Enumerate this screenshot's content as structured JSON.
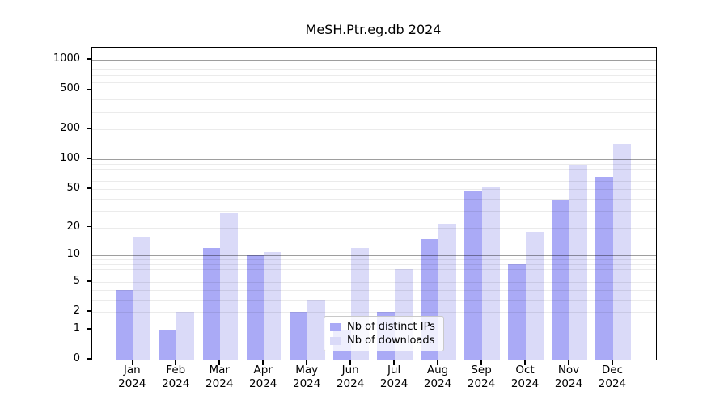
{
  "title": "MeSH.Ptr.eg.db 2024",
  "chart_data": {
    "type": "bar",
    "title": "MeSH.Ptr.eg.db 2024",
    "categories": [
      "Jan 2024",
      "Feb 2024",
      "Mar 2024",
      "Apr 2024",
      "May 2024",
      "Jun 2024",
      "Jul 2024",
      "Aug 2024",
      "Sep 2024",
      "Oct 2024",
      "Nov 2024",
      "Dec 2024"
    ],
    "x_tick_line1": [
      "Jan",
      "Feb",
      "Mar",
      "Apr",
      "May",
      "Jun",
      "Jul",
      "Aug",
      "Sep",
      "Oct",
      "Nov",
      "Dec"
    ],
    "x_tick_line2": [
      "2024",
      "2024",
      "2024",
      "2024",
      "2024",
      "2024",
      "2024",
      "2024",
      "2024",
      "2024",
      "2024",
      "2024"
    ],
    "series": [
      {
        "name": "Nb of distinct IPs",
        "color": "#aaaaf6",
        "values": [
          4,
          1,
          12,
          10,
          2,
          1,
          2,
          15,
          47,
          8,
          39,
          67
        ]
      },
      {
        "name": "Nb of downloads",
        "color": "#dadaf8",
        "values": [
          16,
          2,
          29,
          11,
          3,
          12,
          7,
          22,
          53,
          18,
          88,
          145
        ]
      }
    ],
    "ylabel": "",
    "xlabel": "",
    "y_axis": {
      "scale": "log1p",
      "tick_values": [
        0,
        1,
        2,
        5,
        10,
        20,
        50,
        100,
        200,
        500,
        1000
      ],
      "major_grid_values": [
        1,
        10,
        100,
        1000
      ],
      "ylim": [
        0,
        1100
      ]
    },
    "grid": "on",
    "legend_position": "inside lower-center"
  }
}
